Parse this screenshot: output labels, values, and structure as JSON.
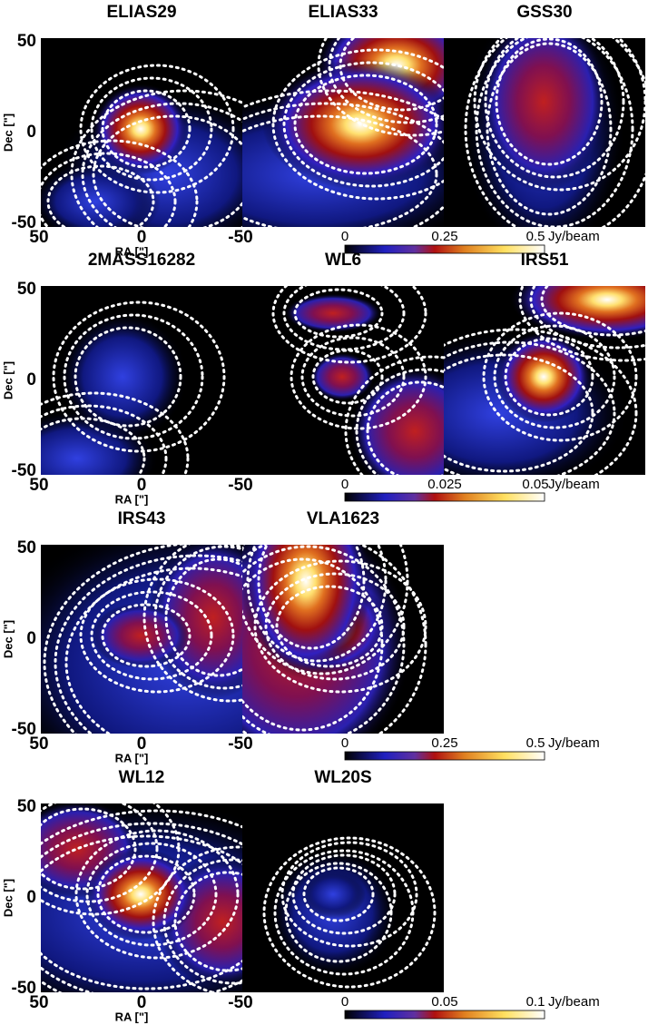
{
  "axes": {
    "x_label": "RA [\"]",
    "y_label": "Dec [\"]",
    "x_ticks": [
      "50",
      "0",
      "-50"
    ],
    "y_ticks": [
      "50",
      "0",
      "-50"
    ]
  },
  "rows": [
    {
      "panels": [
        "ELIAS29",
        "ELIAS33",
        "GSS30"
      ],
      "colorbar": {
        "ticks": [
          "0",
          "0.25",
          "0.5"
        ],
        "unit": "Jy/beam"
      }
    },
    {
      "panels": [
        "2MASS16282",
        "WL6",
        "IRS51"
      ],
      "colorbar": {
        "ticks": [
          "0",
          "0.025",
          "0.05"
        ],
        "unit": "Jy/beam"
      }
    },
    {
      "panels": [
        "IRS43",
        "VLA1623"
      ],
      "colorbar": {
        "ticks": [
          "0",
          "0.25",
          "0.5"
        ],
        "unit": "Jy/beam"
      }
    },
    {
      "panels": [
        "WL12",
        "WL20S"
      ],
      "colorbar": {
        "ticks": [
          "0",
          "0.05",
          "0.1"
        ],
        "unit": "Jy/beam"
      }
    }
  ]
}
